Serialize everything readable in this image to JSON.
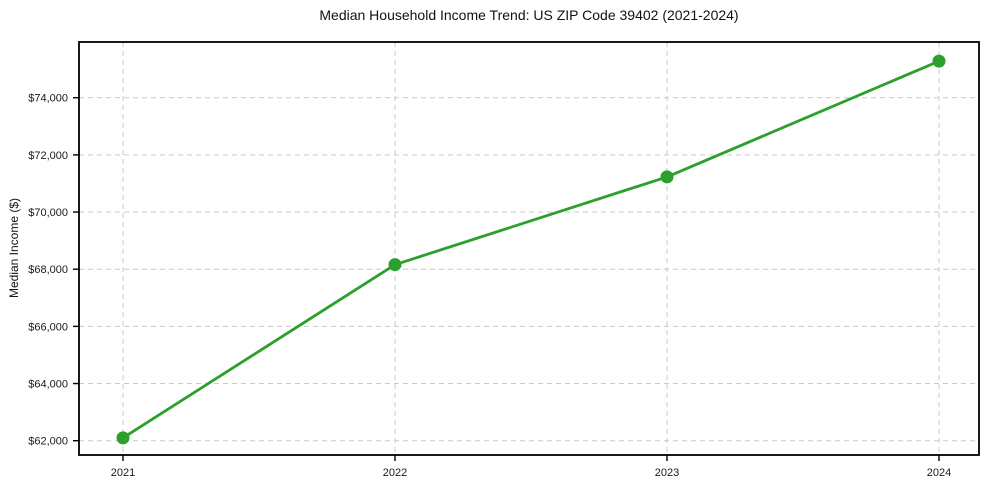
{
  "chart_data": {
    "type": "line",
    "title": "Median Household Income Trend: US ZIP Code 39402 (2021-2024)",
    "xlabel": "",
    "ylabel": "Median Income ($)",
    "categories": [
      "2021",
      "2022",
      "2023",
      "2024"
    ],
    "series": [
      {
        "name": "Median Household Income",
        "values": [
          62100,
          68160,
          71230,
          75280
        ]
      }
    ],
    "y_ticks": [
      {
        "value": 62000,
        "label": "$62,000"
      },
      {
        "value": 64000,
        "label": "$64,000"
      },
      {
        "value": 66000,
        "label": "$66,000"
      },
      {
        "value": 68000,
        "label": "$68,000"
      },
      {
        "value": 70000,
        "label": "$70,000"
      },
      {
        "value": 72000,
        "label": "$72,000"
      },
      {
        "value": 74000,
        "label": "$74,000"
      }
    ],
    "ylim": [
      61500,
      75950
    ],
    "grid": true,
    "grid_style": "dashed",
    "legend_position": "none",
    "marker": "circle",
    "colors": {
      "line": "#2ca02c",
      "grid": "#c9c9c9",
      "axis": "#000000",
      "text": "#1a1a1a",
      "background": "#ffffff"
    }
  }
}
